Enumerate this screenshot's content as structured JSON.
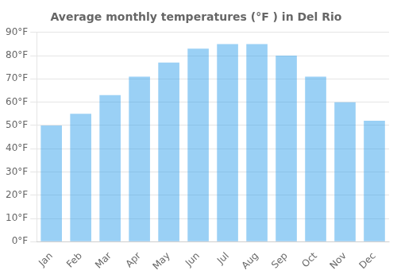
{
  "chart_data": {
    "type": "bar",
    "title": "Average monthly temperatures (°F ) in Del Rio",
    "categories": [
      "Jan",
      "Feb",
      "Mar",
      "Apr",
      "May",
      "Jun",
      "Jul",
      "Aug",
      "Sep",
      "Oct",
      "Nov",
      "Dec"
    ],
    "values": [
      50,
      55,
      63,
      71,
      77,
      83,
      85,
      85,
      80,
      71,
      60,
      52
    ],
    "ylim": [
      0,
      90
    ],
    "yticks": [
      {
        "value": 0,
        "label": "0°F"
      },
      {
        "value": 10,
        "label": "10°F"
      },
      {
        "value": 20,
        "label": "20°F"
      },
      {
        "value": 30,
        "label": "30°F"
      },
      {
        "value": 40,
        "label": "40°F"
      },
      {
        "value": 50,
        "label": "50°F"
      },
      {
        "value": 60,
        "label": "60°F"
      },
      {
        "value": 70,
        "label": "70°F"
      },
      {
        "value": 80,
        "label": "80°F"
      },
      {
        "value": 90,
        "label": "90°F"
      }
    ],
    "grid": true
  }
}
